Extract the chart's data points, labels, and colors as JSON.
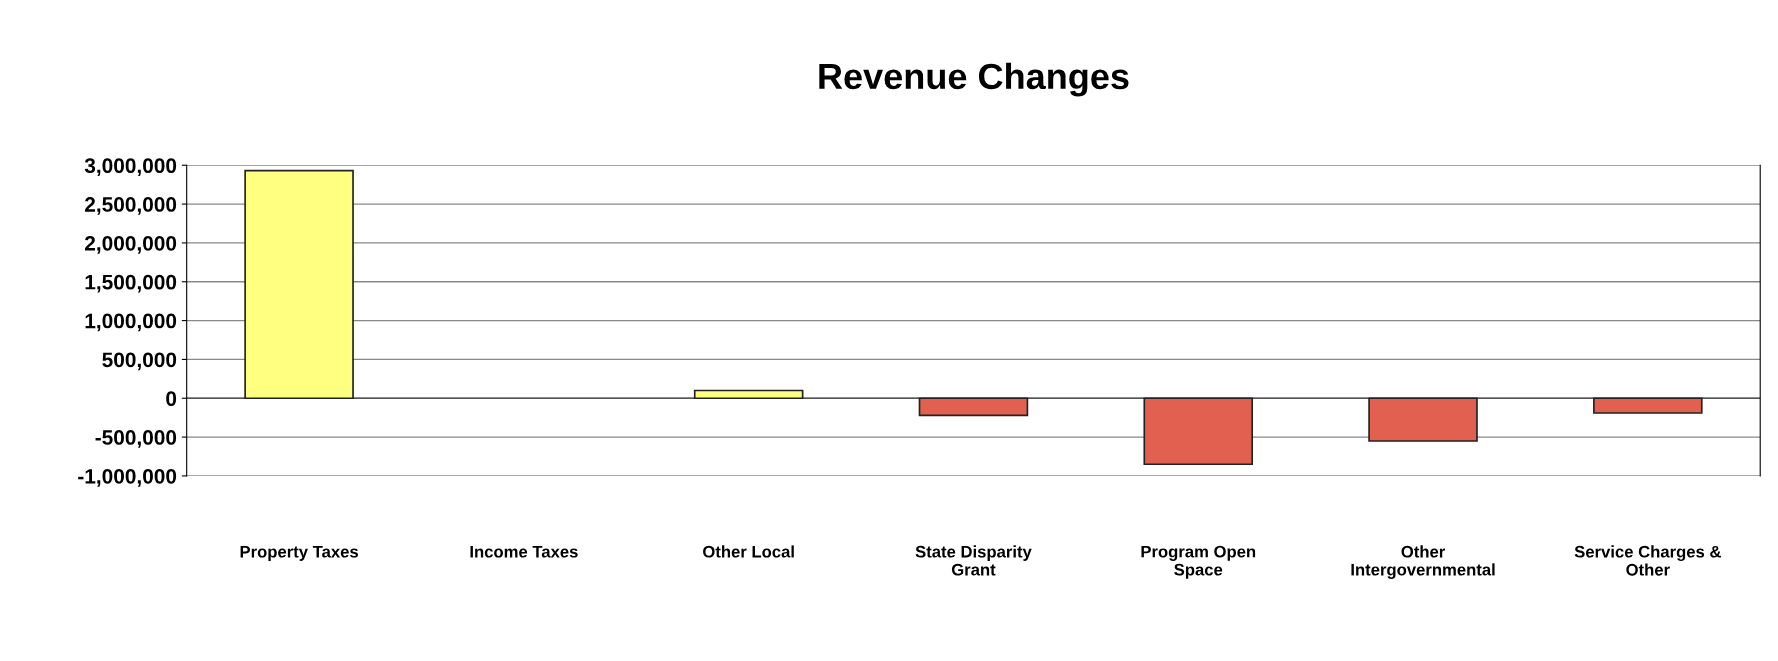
{
  "chart_data": {
    "type": "bar",
    "title": "Revenue Changes",
    "categories": [
      "Property Taxes",
      "Income Taxes",
      "Other Local",
      "State Disparity\nGrant",
      "Program Open\nSpace",
      "Other\nIntergovernmental",
      "Service Charges &\nOther"
    ],
    "values": [
      2930000,
      0,
      100000,
      -220000,
      -850000,
      -550000,
      -190000
    ],
    "colors": [
      "#ffff80",
      "#ffff80",
      "#ffff80",
      "#e2604f",
      "#e2604f",
      "#e2604f",
      "#e2604f"
    ],
    "ylim": [
      -1000000,
      3000000
    ],
    "yticks": [
      {
        "value": -1000000,
        "label": "-1,000,000"
      },
      {
        "value": -500000,
        "label": "-500,000"
      },
      0,
      {
        "value": 500000,
        "label": "500,000"
      },
      {
        "value": 1000000,
        "label": "1,000,000"
      },
      {
        "value": 1500000,
        "label": "1,500,000"
      },
      {
        "value": 2000000,
        "label": "2,000,000"
      },
      {
        "value": 2500000,
        "label": "2,500,000"
      },
      {
        "value": 3000000,
        "label": "3,000,000"
      }
    ],
    "grid": "y"
  }
}
